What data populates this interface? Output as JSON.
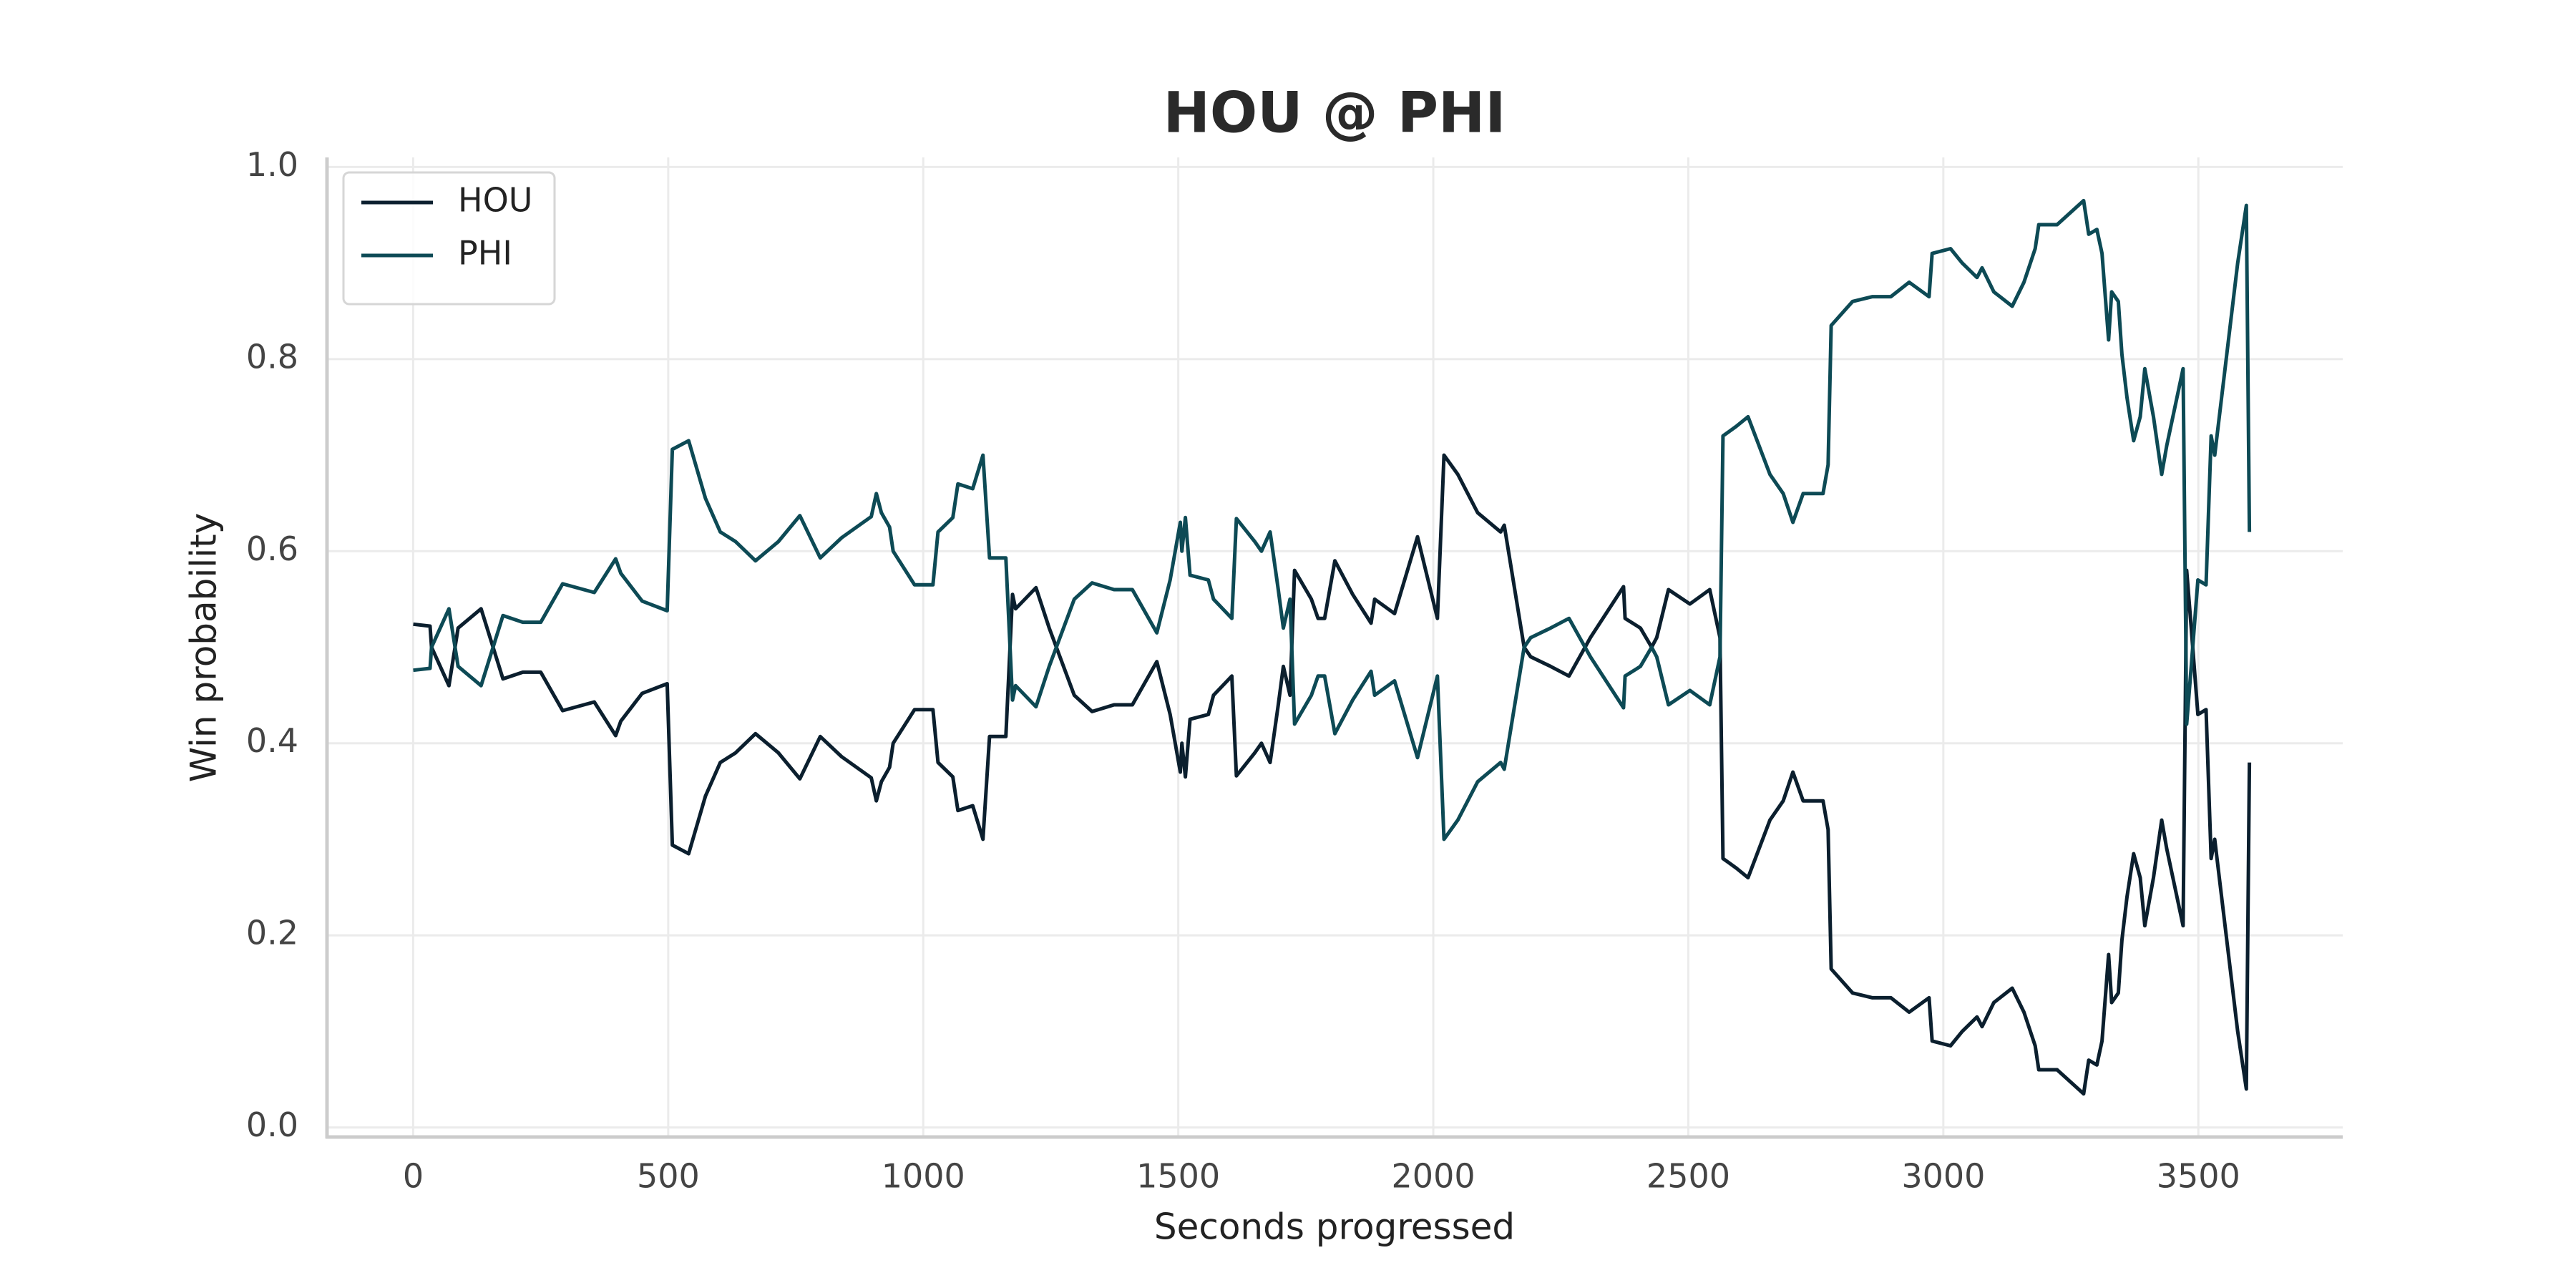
{
  "chart_data": {
    "type": "line",
    "title": "HOU @ PHI",
    "x_label": "Seconds progressed",
    "y_label": "Win probability",
    "x": [
      0,
      33,
      36,
      70,
      88,
      133,
      176,
      215,
      250,
      293,
      355,
      397,
      407,
      449,
      498,
      508,
      540,
      573,
      602,
      632,
      671,
      716,
      758,
      798,
      840,
      898,
      908,
      918,
      934,
      941,
      983,
      1019,
      1029,
      1058,
      1068,
      1097,
      1117,
      1130,
      1162,
      1175,
      1181,
      1221,
      1247,
      1296,
      1331,
      1374,
      1410,
      1458,
      1484,
      1504,
      1507,
      1514,
      1523,
      1559,
      1569,
      1605,
      1614,
      1650,
      1663,
      1680,
      1696,
      1706,
      1719,
      1728,
      1761,
      1774,
      1787,
      1807,
      1842,
      1878,
      1885,
      1924,
      1969,
      2008,
      2021,
      2048,
      2087,
      2132,
      2139,
      2178,
      2191,
      2230,
      2266,
      2308,
      2373,
      2376,
      2406,
      2428,
      2438,
      2461,
      2503,
      2542,
      2562,
      2568,
      2594,
      2617,
      2660,
      2686,
      2705,
      2725,
      2764,
      2774,
      2780,
      2822,
      2861,
      2897,
      2933,
      2972,
      2978,
      3014,
      3037,
      3066,
      3076,
      3099,
      3135,
      3158,
      3180,
      3187,
      3223,
      3275,
      3285,
      3301,
      3311,
      3324,
      3330,
      3343,
      3350,
      3360,
      3373,
      3386,
      3395,
      3412,
      3428,
      3438,
      3470,
      3477,
      3486,
      3499,
      3515,
      3525,
      3532,
      3577,
      3594,
      3600
    ],
    "series": [
      {
        "name": "HOU",
        "color": "#0b1f2e",
        "values": [
          0.524,
          0.522,
          0.5,
          0.46,
          0.52,
          0.54,
          0.467,
          0.474,
          0.474,
          0.434,
          0.443,
          0.408,
          0.423,
          0.452,
          0.462,
          0.294,
          0.285,
          0.345,
          0.38,
          0.39,
          0.41,
          0.39,
          0.363,
          0.407,
          0.386,
          0.364,
          0.34,
          0.36,
          0.375,
          0.4,
          0.435,
          0.435,
          0.38,
          0.365,
          0.33,
          0.335,
          0.3,
          0.407,
          0.407,
          0.555,
          0.54,
          0.562,
          0.52,
          0.45,
          0.433,
          0.44,
          0.44,
          0.485,
          0.43,
          0.37,
          0.4,
          0.365,
          0.425,
          0.43,
          0.45,
          0.47,
          0.366,
          0.39,
          0.4,
          0.38,
          0.44,
          0.48,
          0.45,
          0.58,
          0.55,
          0.53,
          0.53,
          0.59,
          0.555,
          0.525,
          0.55,
          0.535,
          0.615,
          0.53,
          0.7,
          0.68,
          0.64,
          0.62,
          0.627,
          0.5,
          0.49,
          0.48,
          0.47,
          0.51,
          0.563,
          0.53,
          0.52,
          0.5,
          0.51,
          0.56,
          0.545,
          0.56,
          0.51,
          0.28,
          0.27,
          0.26,
          0.32,
          0.34,
          0.37,
          0.34,
          0.34,
          0.31,
          0.165,
          0.14,
          0.135,
          0.135,
          0.12,
          0.135,
          0.09,
          0.085,
          0.1,
          0.115,
          0.105,
          0.13,
          0.145,
          0.12,
          0.085,
          0.06,
          0.06,
          0.035,
          0.07,
          0.065,
          0.09,
          0.18,
          0.13,
          0.14,
          0.195,
          0.24,
          0.285,
          0.26,
          0.21,
          0.26,
          0.32,
          0.29,
          0.21,
          0.58,
          0.52,
          0.43,
          0.435,
          0.28,
          0.3,
          0.1,
          0.04,
          0.38
        ]
      },
      {
        "name": "PHI",
        "color": "#0d4a55",
        "values": [
          0.476,
          0.478,
          0.5,
          0.54,
          0.48,
          0.46,
          0.533,
          0.526,
          0.526,
          0.566,
          0.557,
          0.592,
          0.577,
          0.548,
          0.538,
          0.706,
          0.715,
          0.655,
          0.62,
          0.61,
          0.59,
          0.61,
          0.637,
          0.593,
          0.614,
          0.636,
          0.66,
          0.64,
          0.625,
          0.6,
          0.565,
          0.565,
          0.62,
          0.635,
          0.67,
          0.665,
          0.7,
          0.593,
          0.593,
          0.445,
          0.46,
          0.438,
          0.48,
          0.55,
          0.567,
          0.56,
          0.56,
          0.515,
          0.57,
          0.63,
          0.6,
          0.635,
          0.575,
          0.57,
          0.55,
          0.53,
          0.634,
          0.61,
          0.6,
          0.62,
          0.56,
          0.52,
          0.55,
          0.42,
          0.45,
          0.47,
          0.47,
          0.41,
          0.445,
          0.475,
          0.45,
          0.465,
          0.385,
          0.47,
          0.3,
          0.32,
          0.36,
          0.38,
          0.373,
          0.5,
          0.51,
          0.52,
          0.53,
          0.49,
          0.437,
          0.47,
          0.48,
          0.5,
          0.49,
          0.44,
          0.455,
          0.44,
          0.49,
          0.72,
          0.73,
          0.74,
          0.68,
          0.66,
          0.63,
          0.66,
          0.66,
          0.69,
          0.835,
          0.86,
          0.865,
          0.865,
          0.88,
          0.865,
          0.91,
          0.915,
          0.9,
          0.885,
          0.895,
          0.87,
          0.855,
          0.88,
          0.915,
          0.94,
          0.94,
          0.965,
          0.93,
          0.935,
          0.91,
          0.82,
          0.87,
          0.86,
          0.805,
          0.76,
          0.715,
          0.74,
          0.79,
          0.74,
          0.68,
          0.71,
          0.79,
          0.42,
          0.48,
          0.57,
          0.565,
          0.72,
          0.7,
          0.9,
          0.96,
          0.62
        ]
      }
    ],
    "xlim": [
      -169,
      3783
    ],
    "ylim": [
      -0.01,
      1.01
    ],
    "xticks": [
      0,
      500,
      1000,
      1500,
      2000,
      2500,
      3000,
      3500
    ],
    "yticks": [
      {
        "value": 0,
        "label": "0.0"
      },
      0.2,
      0.4,
      0.6,
      0.8,
      {
        "value": 1,
        "label": "1.0"
      }
    ],
    "grid": true,
    "legend": "upper left"
  }
}
